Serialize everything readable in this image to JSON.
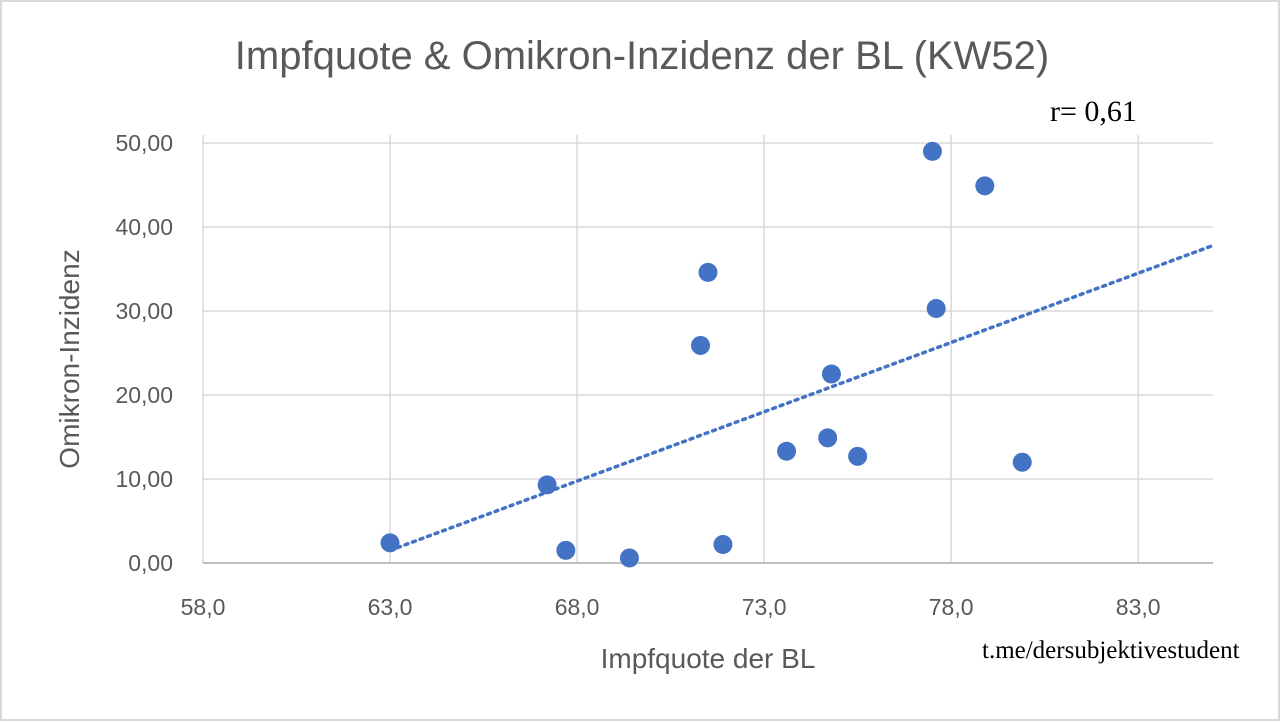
{
  "chart_data": {
    "type": "scatter",
    "title": "Impfquote & Omikron-Inzidenz der BL (KW52)",
    "xlabel": "Impfquote der BL",
    "ylabel": "Omikron-Inzidenz",
    "xlim": [
      58.0,
      85.0
    ],
    "ylim": [
      0.0,
      50.0
    ],
    "x_ticks": [
      58.0,
      63.0,
      68.0,
      73.0,
      78.0,
      83.0
    ],
    "y_ticks": [
      0.0,
      10.0,
      20.0,
      30.0,
      40.0,
      50.0
    ],
    "x_tick_labels": [
      "58,0",
      "63,0",
      "68,0",
      "73,0",
      "78,0",
      "83,0"
    ],
    "y_tick_labels": [
      "0,00",
      "10,00",
      "20,00",
      "30,00",
      "40,00",
      "50,00"
    ],
    "grid": true,
    "legend": "none",
    "point_color": "#4472c4",
    "series": [
      {
        "points": [
          {
            "x": 63.0,
            "y": 2.4
          },
          {
            "x": 67.2,
            "y": 9.3
          },
          {
            "x": 67.7,
            "y": 1.5
          },
          {
            "x": 69.4,
            "y": 0.6
          },
          {
            "x": 71.3,
            "y": 25.9
          },
          {
            "x": 71.5,
            "y": 34.6
          },
          {
            "x": 71.9,
            "y": 2.2
          },
          {
            "x": 73.6,
            "y": 13.3
          },
          {
            "x": 74.7,
            "y": 14.9
          },
          {
            "x": 74.8,
            "y": 22.5
          },
          {
            "x": 75.5,
            "y": 12.7
          },
          {
            "x": 77.5,
            "y": 49.0
          },
          {
            "x": 77.6,
            "y": 30.3
          },
          {
            "x": 78.9,
            "y": 44.9
          },
          {
            "x": 79.9,
            "y": 12.0
          }
        ]
      }
    ],
    "trendline": {
      "type": "linear",
      "style": "dotted",
      "color": "#4472c4",
      "from": {
        "x": 63.0,
        "y": 1.5
      },
      "to": {
        "x": 85.0,
        "y": 37.8
      }
    },
    "annotation": "r=  0,61"
  },
  "watermark": "t.me/dersubjektivestudent"
}
